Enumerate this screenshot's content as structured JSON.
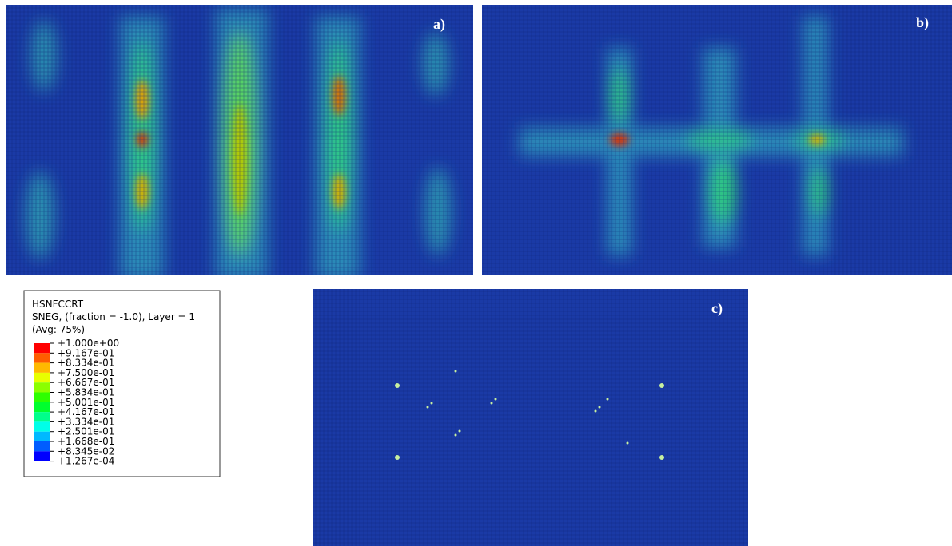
{
  "panels": [
    {
      "label": "a)"
    },
    {
      "label": "b)"
    },
    {
      "label": "c)"
    }
  ],
  "legend": {
    "title": "HSNFCCRT",
    "subtitle": "SNEG, (fraction = -1.0), Layer = 1",
    "note": "(Avg: 75%)",
    "labels": [
      "+1.000e+00",
      "+9.167e-01",
      "+8.334e-01",
      "+7.500e-01",
      "+6.667e-01",
      "+5.834e-01",
      "+5.001e-01",
      "+4.167e-01",
      "+3.334e-01",
      "+2.501e-01",
      "+1.668e-01",
      "+8.345e-02",
      "+1.267e-04"
    ],
    "colors": [
      "#ff0000",
      "#ff5d00",
      "#ffb900",
      "#e8ff00",
      "#8bff00",
      "#2eff00",
      "#00ff2e",
      "#00ff8b",
      "#00ffe8",
      "#00b9ff",
      "#005dff",
      "#0000ff"
    ]
  }
}
